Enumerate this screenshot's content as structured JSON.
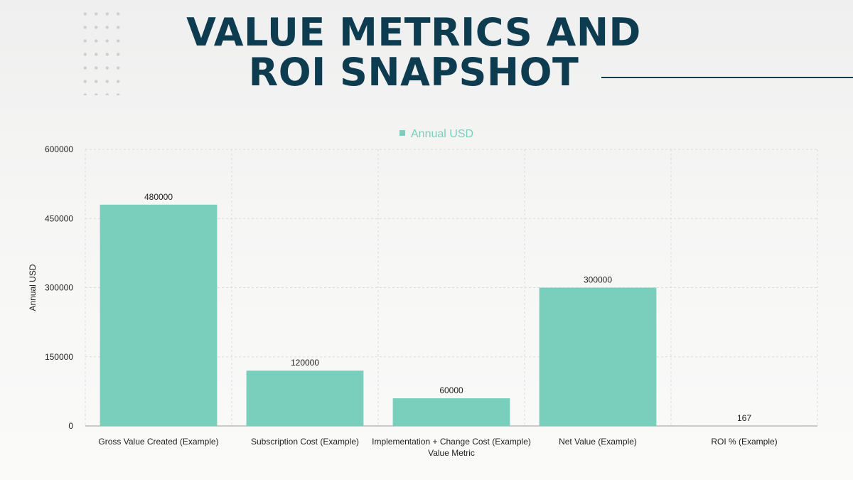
{
  "slide": {
    "title_line1": "VALUE METRICS AND",
    "title_line2": "ROI SNAPSHOT"
  },
  "colors": {
    "bar": "#79cfbc",
    "title": "#0d3b4f",
    "grid": "#dcdcdc",
    "axis": "#9a9a9a",
    "text": "#222222"
  },
  "chart_data": {
    "type": "bar",
    "title": "",
    "legend": {
      "label": "Annual USD",
      "placement": "top-center"
    },
    "categories": [
      "Gross Value Created (Example)",
      "Subscription Cost (Example)",
      "Implementation + Change Cost (Example)",
      "Net Value (Example)",
      "ROI % (Example)"
    ],
    "series": [
      {
        "name": "Annual USD",
        "values": [
          480000,
          120000,
          60000,
          300000,
          167
        ]
      }
    ],
    "data_labels": [
      "480000",
      "120000",
      "60000",
      "300000",
      "167"
    ],
    "xlabel": "Value Metric",
    "ylabel": "Annual USD",
    "ylim": [
      0,
      600000
    ],
    "yticks": [
      0,
      150000,
      300000,
      450000,
      600000
    ],
    "grid": true
  }
}
